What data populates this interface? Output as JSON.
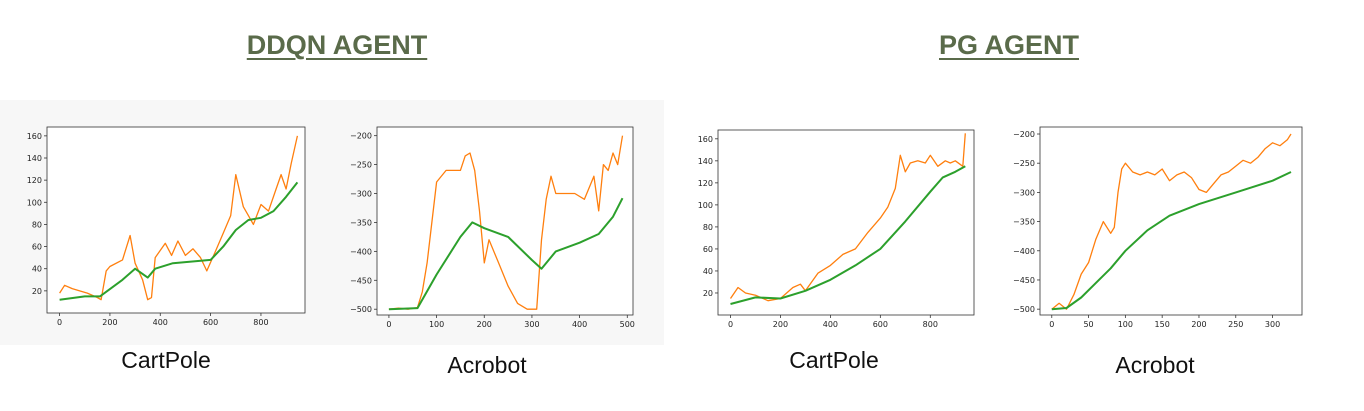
{
  "colors": {
    "heading": "#5a6b4a",
    "raw": "#ff7f0e",
    "avg": "#2ca02c"
  },
  "headings": {
    "left": "DDQN AGENT",
    "right": "PG AGENT"
  },
  "chart_data": [
    {
      "type": "line",
      "caption": "CartPole",
      "xlim": [
        -50,
        975
      ],
      "ylim": [
        0,
        168
      ],
      "xticks": [
        0,
        200,
        400,
        600,
        800
      ],
      "yticks": [
        20,
        40,
        60,
        80,
        100,
        120,
        140,
        160
      ],
      "series": [
        {
          "role": "raw",
          "x": [
            0,
            20,
            50,
            80,
            110,
            150,
            165,
            185,
            200,
            250,
            280,
            300,
            330,
            350,
            365,
            380,
            420,
            445,
            470,
            500,
            530,
            560,
            585,
            620,
            650,
            680,
            700,
            730,
            750,
            770,
            800,
            830,
            860,
            880,
            900,
            920,
            945
          ],
          "y": [
            18,
            25,
            22,
            20,
            18,
            14,
            12,
            38,
            42,
            48,
            70,
            45,
            30,
            12,
            14,
            50,
            63,
            52,
            65,
            52,
            58,
            50,
            38,
            56,
            72,
            88,
            125,
            96,
            88,
            80,
            98,
            92,
            112,
            125,
            112,
            135,
            160
          ]
        },
        {
          "role": "avg",
          "x": [
            0,
            100,
            160,
            250,
            300,
            350,
            380,
            450,
            500,
            550,
            600,
            650,
            700,
            750,
            800,
            850,
            900,
            945
          ],
          "y": [
            12,
            15,
            15,
            30,
            40,
            32,
            40,
            45,
            46,
            47,
            48,
            60,
            75,
            84,
            86,
            92,
            105,
            118
          ]
        }
      ]
    },
    {
      "type": "line",
      "caption": "Acrobot",
      "xlim": [
        -25,
        512
      ],
      "ylim": [
        -510,
        -185
      ],
      "xticks": [
        0,
        100,
        200,
        300,
        400,
        500
      ],
      "yticks": [
        -200,
        -250,
        -300,
        -350,
        -400,
        -450,
        -500
      ],
      "series": [
        {
          "role": "raw",
          "x": [
            0,
            20,
            40,
            60,
            70,
            80,
            100,
            120,
            150,
            160,
            170,
            180,
            190,
            200,
            210,
            230,
            250,
            270,
            290,
            310,
            320,
            330,
            340,
            350,
            370,
            390,
            410,
            430,
            440,
            450,
            460,
            470,
            480,
            490
          ],
          "y": [
            -500,
            -498,
            -500,
            -497,
            -470,
            -420,
            -280,
            -260,
            -260,
            -235,
            -230,
            -260,
            -330,
            -420,
            -380,
            -420,
            -460,
            -490,
            -500,
            -500,
            -380,
            -310,
            -270,
            -300,
            -300,
            -300,
            -310,
            -270,
            -330,
            -250,
            -260,
            -230,
            -250,
            -200
          ]
        },
        {
          "role": "avg",
          "x": [
            0,
            60,
            100,
            150,
            175,
            200,
            250,
            300,
            320,
            350,
            400,
            440,
            470,
            490
          ],
          "y": [
            -500,
            -498,
            -440,
            -375,
            -350,
            -360,
            -375,
            -415,
            -430,
            -400,
            -385,
            -370,
            -340,
            -308
          ]
        }
      ]
    },
    {
      "type": "line",
      "caption": "CartPole",
      "xlim": [
        -50,
        975
      ],
      "ylim": [
        0,
        168
      ],
      "xticks": [
        0,
        200,
        400,
        600,
        800
      ],
      "yticks": [
        20,
        40,
        60,
        80,
        100,
        120,
        140,
        160
      ],
      "series": [
        {
          "role": "raw",
          "x": [
            0,
            30,
            60,
            100,
            150,
            200,
            250,
            280,
            300,
            350,
            400,
            450,
            500,
            550,
            600,
            630,
            660,
            680,
            700,
            720,
            750,
            780,
            800,
            830,
            860,
            880,
            900,
            930,
            940
          ],
          "y": [
            15,
            25,
            20,
            18,
            13,
            15,
            25,
            28,
            22,
            38,
            45,
            55,
            60,
            75,
            88,
            98,
            115,
            145,
            130,
            138,
            140,
            138,
            145,
            135,
            140,
            138,
            140,
            135,
            165
          ]
        },
        {
          "role": "avg",
          "x": [
            0,
            100,
            200,
            300,
            400,
            500,
            600,
            700,
            800,
            850,
            900,
            940
          ],
          "y": [
            10,
            16,
            15,
            22,
            32,
            45,
            60,
            85,
            112,
            125,
            130,
            135
          ]
        }
      ]
    },
    {
      "type": "line",
      "caption": "Acrobot",
      "xlim": [
        -16,
        340
      ],
      "ylim": [
        -510,
        -188
      ],
      "xticks": [
        0,
        50,
        100,
        150,
        200,
        250,
        300
      ],
      "yticks": [
        -200,
        -250,
        -300,
        -350,
        -400,
        -450,
        -500
      ],
      "series": [
        {
          "role": "raw",
          "x": [
            0,
            10,
            20,
            30,
            40,
            50,
            60,
            70,
            80,
            85,
            90,
            95,
            100,
            110,
            120,
            130,
            140,
            150,
            160,
            170,
            180,
            190,
            200,
            210,
            220,
            230,
            240,
            250,
            260,
            270,
            280,
            290,
            300,
            310,
            320,
            325
          ],
          "y": [
            -500,
            -490,
            -500,
            -475,
            -440,
            -420,
            -380,
            -350,
            -370,
            -360,
            -300,
            -260,
            -250,
            -265,
            -270,
            -265,
            -270,
            -260,
            -280,
            -270,
            -265,
            -275,
            -295,
            -300,
            -285,
            -270,
            -265,
            -255,
            -245,
            -250,
            -240,
            -225,
            -215,
            -220,
            -210,
            -200
          ]
        },
        {
          "role": "avg",
          "x": [
            0,
            20,
            40,
            60,
            80,
            100,
            130,
            160,
            200,
            250,
            300,
            325
          ],
          "y": [
            -500,
            -498,
            -480,
            -455,
            -430,
            -400,
            -365,
            -340,
            -320,
            -300,
            -280,
            -265
          ]
        }
      ]
    }
  ]
}
